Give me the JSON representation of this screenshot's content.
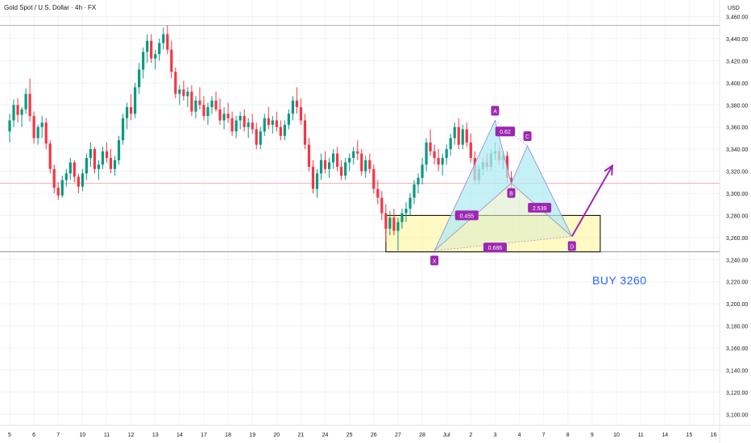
{
  "header": {
    "title": "Gold Spot / U.S. Dollar · 4h · FX",
    "currency": "USD"
  },
  "annotation": {
    "buy_note": "BUY 3260"
  },
  "colors": {
    "up": "#089981",
    "down": "#f23645",
    "pattern_fill": "#b2ebf2",
    "pattern_lower_fill": "#dcedc8",
    "zone_fill": "#fff59d",
    "label_bg": "#9c27b0",
    "arrow": "#9c27b0",
    "buy_note": "#2962ff"
  },
  "chart_data": {
    "type": "candlestick",
    "title": "Gold Spot / U.S. Dollar · 4h · FX",
    "ylabel": "USD",
    "ylim": [
      3090,
      3475
    ],
    "y_ticks": [
      3100,
      3120,
      3140,
      3160,
      3180,
      3200,
      3220,
      3240,
      3260,
      3280,
      3300,
      3320,
      3340,
      3360,
      3380,
      3400,
      3420,
      3440,
      3460
    ],
    "y_tick_labels": [
      "3,100.00",
      "3,120.00",
      "3,140.00",
      "3,160.00",
      "3,180.00",
      "3,200.00",
      "3,220.00",
      "3,240.00",
      "3,260.00",
      "3,280.00",
      "3,300.00",
      "3,320.00",
      "3,340.00",
      "3,360.00",
      "3,380.00",
      "3,400.00",
      "3,420.00",
      "3,440.00",
      "3,460.00"
    ],
    "x_ticks": [
      "5",
      "6",
      "7",
      "10",
      "11",
      "12",
      "13",
      "14",
      "17",
      "18",
      "19",
      "20",
      "21",
      "24",
      "25",
      "26",
      "27",
      "28",
      "Jul",
      "2",
      "3",
      "4",
      "7",
      "8",
      "9",
      "10",
      "11",
      "14",
      "15",
      "16"
    ],
    "x_tick_bar_index": [
      0,
      6,
      12,
      18,
      24,
      30,
      36,
      42,
      48,
      54,
      60,
      66,
      72,
      78,
      84,
      90,
      96,
      102,
      108,
      114,
      120,
      126,
      132,
      138,
      144,
      150,
      156,
      162,
      168,
      174
    ],
    "horizontal_lines": [
      3452,
      3309,
      3247
    ],
    "candles": [
      [
        3356,
        3372,
        3346,
        3366
      ],
      [
        3366,
        3385,
        3360,
        3380
      ],
      [
        3380,
        3386,
        3364,
        3371
      ],
      [
        3371,
        3378,
        3360,
        3376
      ],
      [
        3376,
        3395,
        3372,
        3390
      ],
      [
        3390,
        3404,
        3365,
        3370
      ],
      [
        3370,
        3374,
        3345,
        3350
      ],
      [
        3350,
        3362,
        3344,
        3360
      ],
      [
        3360,
        3370,
        3350,
        3364
      ],
      [
        3364,
        3368,
        3340,
        3345
      ],
      [
        3345,
        3348,
        3318,
        3322
      ],
      [
        3322,
        3326,
        3300,
        3305
      ],
      [
        3305,
        3310,
        3294,
        3298
      ],
      [
        3298,
        3316,
        3296,
        3312
      ],
      [
        3312,
        3322,
        3306,
        3318
      ],
      [
        3318,
        3332,
        3312,
        3328
      ],
      [
        3328,
        3330,
        3310,
        3315
      ],
      [
        3315,
        3318,
        3300,
        3306
      ],
      [
        3306,
        3322,
        3302,
        3318
      ],
      [
        3318,
        3336,
        3312,
        3332
      ],
      [
        3332,
        3346,
        3324,
        3340
      ],
      [
        3340,
        3342,
        3318,
        3322
      ],
      [
        3322,
        3330,
        3312,
        3326
      ],
      [
        3326,
        3342,
        3322,
        3338
      ],
      [
        3338,
        3346,
        3328,
        3332
      ],
      [
        3332,
        3340,
        3318,
        3322
      ],
      [
        3322,
        3334,
        3316,
        3330
      ],
      [
        3330,
        3352,
        3326,
        3348
      ],
      [
        3348,
        3372,
        3344,
        3368
      ],
      [
        3368,
        3382,
        3358,
        3378
      ],
      [
        3378,
        3390,
        3366,
        3372
      ],
      [
        3372,
        3400,
        3368,
        3396
      ],
      [
        3396,
        3418,
        3390,
        3412
      ],
      [
        3412,
        3432,
        3404,
        3428
      ],
      [
        3428,
        3444,
        3418,
        3438
      ],
      [
        3438,
        3444,
        3418,
        3422
      ],
      [
        3422,
        3430,
        3412,
        3426
      ],
      [
        3426,
        3440,
        3420,
        3436
      ],
      [
        3436,
        3450,
        3430,
        3444
      ],
      [
        3444,
        3452,
        3426,
        3430
      ],
      [
        3430,
        3438,
        3404,
        3410
      ],
      [
        3410,
        3414,
        3386,
        3390
      ],
      [
        3390,
        3398,
        3380,
        3394
      ],
      [
        3394,
        3402,
        3384,
        3388
      ],
      [
        3388,
        3396,
        3378,
        3392
      ],
      [
        3392,
        3398,
        3370,
        3374
      ],
      [
        3374,
        3388,
        3368,
        3384
      ],
      [
        3384,
        3396,
        3376,
        3380
      ],
      [
        3380,
        3388,
        3366,
        3370
      ],
      [
        3370,
        3382,
        3362,
        3378
      ],
      [
        3378,
        3388,
        3372,
        3384
      ],
      [
        3384,
        3392,
        3374,
        3376
      ],
      [
        3376,
        3386,
        3362,
        3366
      ],
      [
        3366,
        3378,
        3358,
        3372
      ],
      [
        3372,
        3382,
        3364,
        3368
      ],
      [
        3368,
        3374,
        3352,
        3356
      ],
      [
        3356,
        3370,
        3350,
        3366
      ],
      [
        3366,
        3374,
        3358,
        3370
      ],
      [
        3370,
        3376,
        3356,
        3360
      ],
      [
        3360,
        3368,
        3350,
        3364
      ],
      [
        3364,
        3372,
        3354,
        3358
      ],
      [
        3358,
        3364,
        3340,
        3344
      ],
      [
        3344,
        3360,
        3340,
        3356
      ],
      [
        3356,
        3372,
        3352,
        3368
      ],
      [
        3368,
        3378,
        3358,
        3362
      ],
      [
        3362,
        3370,
        3354,
        3366
      ],
      [
        3366,
        3374,
        3356,
        3360
      ],
      [
        3360,
        3366,
        3348,
        3352
      ],
      [
        3352,
        3366,
        3348,
        3362
      ],
      [
        3362,
        3376,
        3358,
        3372
      ],
      [
        3372,
        3388,
        3366,
        3384
      ],
      [
        3384,
        3396,
        3372,
        3378
      ],
      [
        3378,
        3386,
        3362,
        3366
      ],
      [
        3366,
        3372,
        3340,
        3344
      ],
      [
        3344,
        3350,
        3320,
        3324
      ],
      [
        3324,
        3330,
        3300,
        3304
      ],
      [
        3304,
        3322,
        3296,
        3318
      ],
      [
        3318,
        3336,
        3312,
        3330
      ],
      [
        3330,
        3338,
        3318,
        3322
      ],
      [
        3322,
        3332,
        3314,
        3328
      ],
      [
        3328,
        3340,
        3322,
        3336
      ],
      [
        3336,
        3342,
        3320,
        3324
      ],
      [
        3324,
        3330,
        3312,
        3316
      ],
      [
        3316,
        3332,
        3312,
        3328
      ],
      [
        3328,
        3336,
        3320,
        3332
      ],
      [
        3332,
        3342,
        3326,
        3338
      ],
      [
        3338,
        3348,
        3330,
        3336
      ],
      [
        3336,
        3340,
        3316,
        3320
      ],
      [
        3320,
        3334,
        3314,
        3330
      ],
      [
        3330,
        3336,
        3318,
        3322
      ],
      [
        3322,
        3326,
        3300,
        3304
      ],
      [
        3304,
        3312,
        3290,
        3296
      ],
      [
        3296,
        3302,
        3276,
        3282
      ],
      [
        3282,
        3290,
        3256,
        3268
      ],
      [
        3268,
        3284,
        3262,
        3278
      ],
      [
        3278,
        3286,
        3262,
        3266
      ],
      [
        3266,
        3278,
        3248,
        3274
      ],
      [
        3274,
        3286,
        3268,
        3282
      ],
      [
        3282,
        3292,
        3274,
        3286
      ],
      [
        3286,
        3300,
        3280,
        3296
      ],
      [
        3296,
        3312,
        3290,
        3308
      ],
      [
        3308,
        3318,
        3300,
        3314
      ],
      [
        3314,
        3332,
        3308,
        3326
      ],
      [
        3326,
        3350,
        3320,
        3346
      ],
      [
        3346,
        3358,
        3334,
        3338
      ],
      [
        3338,
        3344,
        3326,
        3332
      ],
      [
        3332,
        3340,
        3320,
        3326
      ],
      [
        3326,
        3336,
        3316,
        3332
      ],
      [
        3332,
        3344,
        3326,
        3340
      ],
      [
        3340,
        3354,
        3334,
        3350
      ],
      [
        3350,
        3364,
        3344,
        3360
      ],
      [
        3360,
        3368,
        3340,
        3344
      ],
      [
        3344,
        3362,
        3340,
        3358
      ],
      [
        3358,
        3364,
        3342,
        3346
      ],
      [
        3346,
        3354,
        3328,
        3332
      ],
      [
        3332,
        3338,
        3308,
        3312
      ],
      [
        3312,
        3326,
        3308,
        3322
      ],
      [
        3322,
        3332,
        3316,
        3328
      ],
      [
        3328,
        3336,
        3320,
        3324
      ],
      [
        3324,
        3340,
        3320,
        3336
      ],
      [
        3336,
        3346,
        3330,
        3338
      ],
      [
        3338,
        3342,
        3326,
        3330
      ],
      [
        3330,
        3338,
        3322,
        3334
      ],
      [
        3334,
        3338,
        3310,
        3314
      ],
      [
        3314,
        3320,
        3304,
        3310
      ]
    ],
    "harmonic_pattern": {
      "points": [
        {
          "label": "X",
          "x_bar": 105,
          "y": 3248
        },
        {
          "label": "A",
          "x_bar": 120,
          "y": 3366
        },
        {
          "label": "B",
          "x_bar": 124,
          "y": 3309
        },
        {
          "label": "C",
          "x_bar": 128,
          "y": 3343
        },
        {
          "label": "D",
          "x_bar": 139,
          "y": 3261
        }
      ],
      "ratios": [
        {
          "label": "0.455",
          "x_bar": 113,
          "y": 3280
        },
        {
          "label": "0.62",
          "x_bar": 122.5,
          "y": 3356
        },
        {
          "label": "2.539",
          "x_bar": 131,
          "y": 3287
        },
        {
          "label": "0.686",
          "x_bar": 120,
          "y": 3251
        }
      ]
    },
    "buy_zone": {
      "x_start_bar": 93,
      "x_end_bar": 146,
      "y_low": 3247,
      "y_high": 3280
    },
    "projection_arrow": {
      "from_bar": 139,
      "from_y": 3261,
      "to_bar": 149,
      "to_y": 3325
    }
  }
}
